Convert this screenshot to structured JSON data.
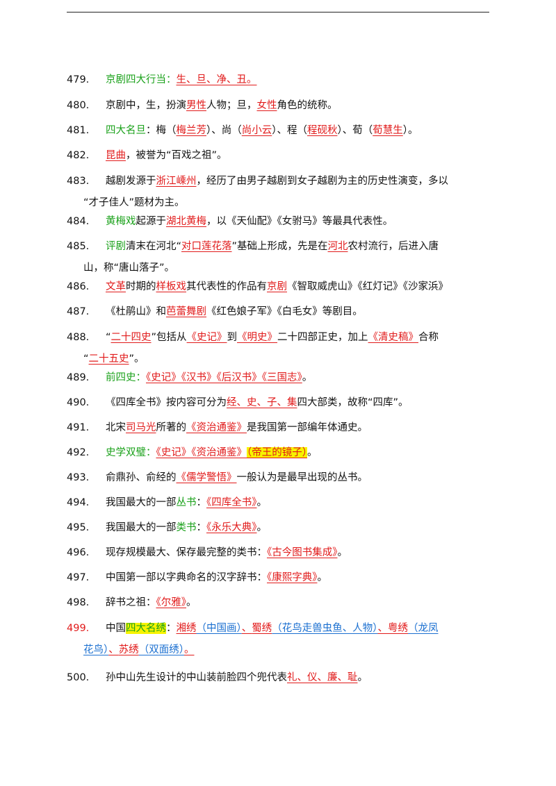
{
  "items": [
    {
      "num": "479.",
      "num_color": "",
      "lines": [
        [
          {
            "t": "京剧四大行当：",
            "s": "g"
          },
          {
            "t": "生、旦、净、丑。",
            "s": "r"
          }
        ]
      ]
    },
    {
      "num": "480.",
      "num_color": "",
      "lines": [
        [
          {
            "t": "京剧中，生，扮演",
            "s": ""
          },
          {
            "t": "男性",
            "s": "r"
          },
          {
            "t": "人物；旦，",
            "s": ""
          },
          {
            "t": "女性",
            "s": "r"
          },
          {
            "t": "角色的统称。",
            "s": ""
          }
        ]
      ]
    },
    {
      "num": "481.",
      "num_color": "",
      "lines": [
        [
          {
            "t": "四大名旦",
            "s": "g"
          },
          {
            "t": "：梅（",
            "s": ""
          },
          {
            "t": "梅兰芳",
            "s": "r"
          },
          {
            "t": "）、尚（",
            "s": ""
          },
          {
            "t": "尚小云",
            "s": "r"
          },
          {
            "t": "）、程（",
            "s": ""
          },
          {
            "t": "程砚秋",
            "s": "r"
          },
          {
            "t": "）、荀（",
            "s": ""
          },
          {
            "t": "荀慧生",
            "s": "r"
          },
          {
            "t": "）。",
            "s": ""
          }
        ]
      ]
    },
    {
      "num": "482.",
      "num_color": "",
      "lines": [
        [
          {
            "t": "昆曲",
            "s": "r"
          },
          {
            "t": "，被誉为“百戏之祖”。",
            "s": ""
          }
        ]
      ]
    },
    {
      "num": "483.",
      "num_color": "",
      "lines": [
        [
          {
            "t": "越剧发源于",
            "s": ""
          },
          {
            "t": "浙江嵊州",
            "s": "r"
          },
          {
            "t": "，经历了由男子越剧到女子越剧为主的历史性演变，多以",
            "s": ""
          }
        ],
        [
          {
            "t": "“才子佳人”题材为主。",
            "s": ""
          }
        ]
      ]
    },
    {
      "num": "484.",
      "num_color": "",
      "lines": [
        [
          {
            "t": "黄梅戏",
            "s": "g"
          },
          {
            "t": "起源于",
            "s": ""
          },
          {
            "t": "湖北黄梅",
            "s": "r"
          },
          {
            "t": "，以《天仙配》《女驸马》等最具代表性。",
            "s": ""
          }
        ]
      ]
    },
    {
      "num": "485.",
      "num_color": "",
      "lines": [
        [
          {
            "t": "评剧",
            "s": "g"
          },
          {
            "t": "清末在河北“",
            "s": ""
          },
          {
            "t": "对口莲花落",
            "s": "r"
          },
          {
            "t": "”基础上形成，先是在",
            "s": ""
          },
          {
            "t": "河北",
            "s": "r"
          },
          {
            "t": "农村流行，后进入唐",
            "s": ""
          }
        ],
        [
          {
            "t": "山，称“唐山落子”。",
            "s": ""
          }
        ]
      ]
    },
    {
      "num": "486.",
      "num_color": "",
      "lines": [
        [
          {
            "t": "文革",
            "s": "r"
          },
          {
            "t": "时期的",
            "s": ""
          },
          {
            "t": "样板戏",
            "s": "r"
          },
          {
            "t": "其代表性的作品有",
            "s": ""
          },
          {
            "t": "京剧",
            "s": "r"
          },
          {
            "t": "《智取威虎山》《红灯记》《沙家浜》",
            "s": ""
          }
        ]
      ]
    },
    {
      "num": "487.",
      "num_color": "",
      "lines": [
        [
          {
            "t": "《杜鹃山》和",
            "s": ""
          },
          {
            "t": "芭蕾舞剧",
            "s": "r"
          },
          {
            "t": "《红色娘子军》《白毛女》等剧目。",
            "s": ""
          }
        ]
      ]
    },
    {
      "num": "488.",
      "num_color": "",
      "lines": [
        [
          {
            "t": "“",
            "s": ""
          },
          {
            "t": "二十四史",
            "s": "r"
          },
          {
            "t": "”包括从",
            "s": ""
          },
          {
            "t": "《史记》",
            "s": "r"
          },
          {
            "t": "到",
            "s": ""
          },
          {
            "t": "《明史》",
            "s": "r"
          },
          {
            "t": "二十四部正史，加上",
            "s": ""
          },
          {
            "t": "《清史稿》",
            "s": "r"
          },
          {
            "t": "合称",
            "s": ""
          }
        ],
        [
          {
            "t": "“",
            "s": ""
          },
          {
            "t": "二十五史",
            "s": "r"
          },
          {
            "t": "”。",
            "s": ""
          }
        ]
      ]
    },
    {
      "num": "489.",
      "num_color": "",
      "lines": [
        [
          {
            "t": "前四史：",
            "s": "g"
          },
          {
            "t": "《史记》《汉书》《后汉书》《三国志》",
            "s": "r"
          },
          {
            "t": "。",
            "s": ""
          }
        ]
      ]
    },
    {
      "num": "490.",
      "num_color": "",
      "lines": [
        [
          {
            "t": "《四库全书》按内容可分为",
            "s": ""
          },
          {
            "t": "经、史、子、集",
            "s": "r"
          },
          {
            "t": "四大部类，故称“四库”。",
            "s": ""
          }
        ]
      ]
    },
    {
      "num": "491.",
      "num_color": "",
      "lines": [
        [
          {
            "t": "北宋",
            "s": ""
          },
          {
            "t": "司马光",
            "s": "r"
          },
          {
            "t": "所著的",
            "s": ""
          },
          {
            "t": "《资治通鉴》",
            "s": "r"
          },
          {
            "t": "是我国第一部编年体通史。",
            "s": ""
          }
        ]
      ]
    },
    {
      "num": "492.",
      "num_color": "",
      "lines": [
        [
          {
            "t": "史学双璧：",
            "s": "g"
          },
          {
            "t": "《史记》《资治通鉴》",
            "s": "r"
          },
          {
            "t": "（帝王的镜子）",
            "s": "rhl"
          },
          {
            "t": "。",
            "s": ""
          }
        ]
      ]
    },
    {
      "num": "493.",
      "num_color": "",
      "lines": [
        [
          {
            "t": "俞鼎孙、俞经的",
            "s": ""
          },
          {
            "t": "《儒学警悟》",
            "s": "r"
          },
          {
            "t": "一般认为是最早出现的丛书。",
            "s": ""
          }
        ]
      ]
    },
    {
      "num": "494.",
      "num_color": "",
      "lines": [
        [
          {
            "t": "我国最大的一部",
            "s": ""
          },
          {
            "t": "丛书",
            "s": "g"
          },
          {
            "t": "：",
            "s": ""
          },
          {
            "t": "《四库全书》",
            "s": "r"
          },
          {
            "t": "。",
            "s": ""
          }
        ]
      ]
    },
    {
      "num": "495.",
      "num_color": "",
      "lines": [
        [
          {
            "t": "我国最大的一部",
            "s": ""
          },
          {
            "t": "类书",
            "s": "g"
          },
          {
            "t": "：",
            "s": ""
          },
          {
            "t": "《永乐大典》",
            "s": "r"
          },
          {
            "t": "。",
            "s": ""
          }
        ]
      ]
    },
    {
      "num": "496.",
      "num_color": "",
      "lines": [
        [
          {
            "t": "现存规模最大、保存最完整的类书：",
            "s": ""
          },
          {
            "t": "《古今图书集成》",
            "s": "r"
          },
          {
            "t": "。",
            "s": ""
          }
        ]
      ]
    },
    {
      "num": "497.",
      "num_color": "",
      "lines": [
        [
          {
            "t": "中国第一部以字典命名的汉字辞书：",
            "s": ""
          },
          {
            "t": "《康熙字典》",
            "s": "r"
          },
          {
            "t": "。",
            "s": ""
          }
        ]
      ]
    },
    {
      "num": "498.",
      "num_color": "",
      "lines": [
        [
          {
            "t": "辞书之祖：",
            "s": ""
          },
          {
            "t": "《尔雅》",
            "s": "r"
          },
          {
            "t": "。",
            "s": ""
          }
        ]
      ]
    },
    {
      "num": "499.",
      "num_color": "#e11a1a",
      "lines": [
        [
          {
            "t": "中国",
            "s": ""
          },
          {
            "t": "四大名绣",
            "s": "ghl"
          },
          {
            "t": "：",
            "s": ""
          },
          {
            "t": "湘绣",
            "s": "r"
          },
          {
            "t": "（中国画）",
            "s": "b"
          },
          {
            "t": "、",
            "s": "r"
          },
          {
            "t": "蜀绣",
            "s": "r"
          },
          {
            "t": "（花鸟走兽虫鱼、人物）",
            "s": "b"
          },
          {
            "t": "、",
            "s": "r"
          },
          {
            "t": "粤绣",
            "s": "r"
          },
          {
            "t": "（龙凤",
            "s": "b"
          }
        ],
        [
          {
            "t": "花鸟）",
            "s": "b"
          },
          {
            "t": "、",
            "s": "r"
          },
          {
            "t": "苏绣",
            "s": "r"
          },
          {
            "t": "（双面绣）",
            "s": "b"
          },
          {
            "t": "。",
            "s": "r"
          }
        ]
      ]
    },
    {
      "num": "500.",
      "num_color": "",
      "lines": [
        [
          {
            "t": "孙中山先生设计的中山装前脸四个兜代表",
            "s": ""
          },
          {
            "t": "礼、仪、廉、耻",
            "s": "r"
          },
          {
            "t": "。",
            "s": ""
          }
        ]
      ]
    }
  ]
}
